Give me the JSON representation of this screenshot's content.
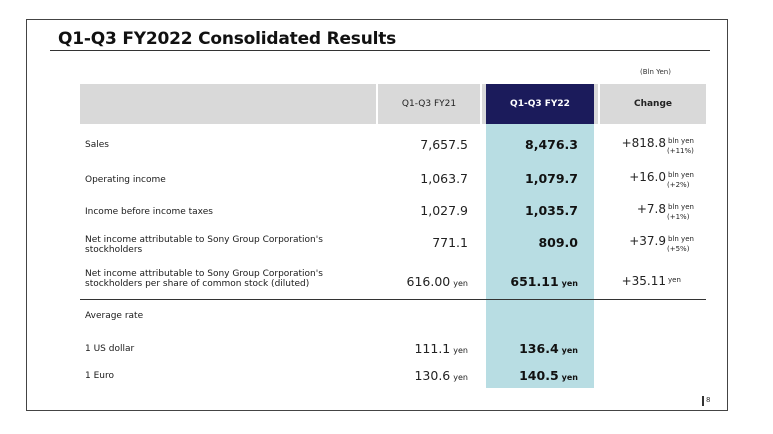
{
  "title": "Q1-Q3 FY2022 Consolidated Results",
  "unit_note": "(Bln Yen)",
  "headers": {
    "fy21": "Q1-Q3 FY21",
    "fy22": "Q1-Q3 FY22",
    "change": "Change"
  },
  "rows": [
    {
      "label": "Sales",
      "fy21": "7,657.5",
      "fy22": "8,476.3",
      "change": "+818.8",
      "change_unit": "bln yen",
      "change_pct": "(+11%)"
    },
    {
      "label": "Operating income",
      "fy21": "1,063.7",
      "fy22": "1,079.7",
      "change": "+16.0",
      "change_unit": "bln yen",
      "change_pct": "(+2%)"
    },
    {
      "label": "Income before income taxes",
      "fy21": "1,027.9",
      "fy22": "1,035.7",
      "change": "+7.8",
      "change_unit": "bln yen",
      "change_pct": "(+1%)"
    },
    {
      "label_l1": "Net income attributable to Sony Group Corporation's",
      "label_l2": "stockholders",
      "fy21": "771.1",
      "fy22": "809.0",
      "change": "+37.9",
      "change_unit": "bln yen",
      "change_pct": "(+5%)"
    },
    {
      "label_l1": "Net income attributable to Sony Group Corporation's",
      "label_l2": "stockholders per share of common stock (diluted)",
      "fy21": "616.00",
      "fy21_unit": "yen",
      "fy22": "651.11",
      "fy22_unit": "yen",
      "change": "+35.11",
      "change_unit": "yen"
    }
  ],
  "rates": {
    "heading": "Average rate",
    "usd": {
      "label": "1 US dollar",
      "fy21": "111.1",
      "fy21_unit": "yen",
      "fy22": "136.4",
      "fy22_unit": "yen"
    },
    "eur": {
      "label": "1 Euro",
      "fy21": "130.6",
      "fy21_unit": "yen",
      "fy22": "140.5",
      "fy22_unit": "yen"
    }
  },
  "page_number": "8",
  "colors": {
    "header_gray": "#d9d9d9",
    "fy22_header_navy": "#1b1b5b",
    "fy22_column_teal": "#b8dde3"
  }
}
